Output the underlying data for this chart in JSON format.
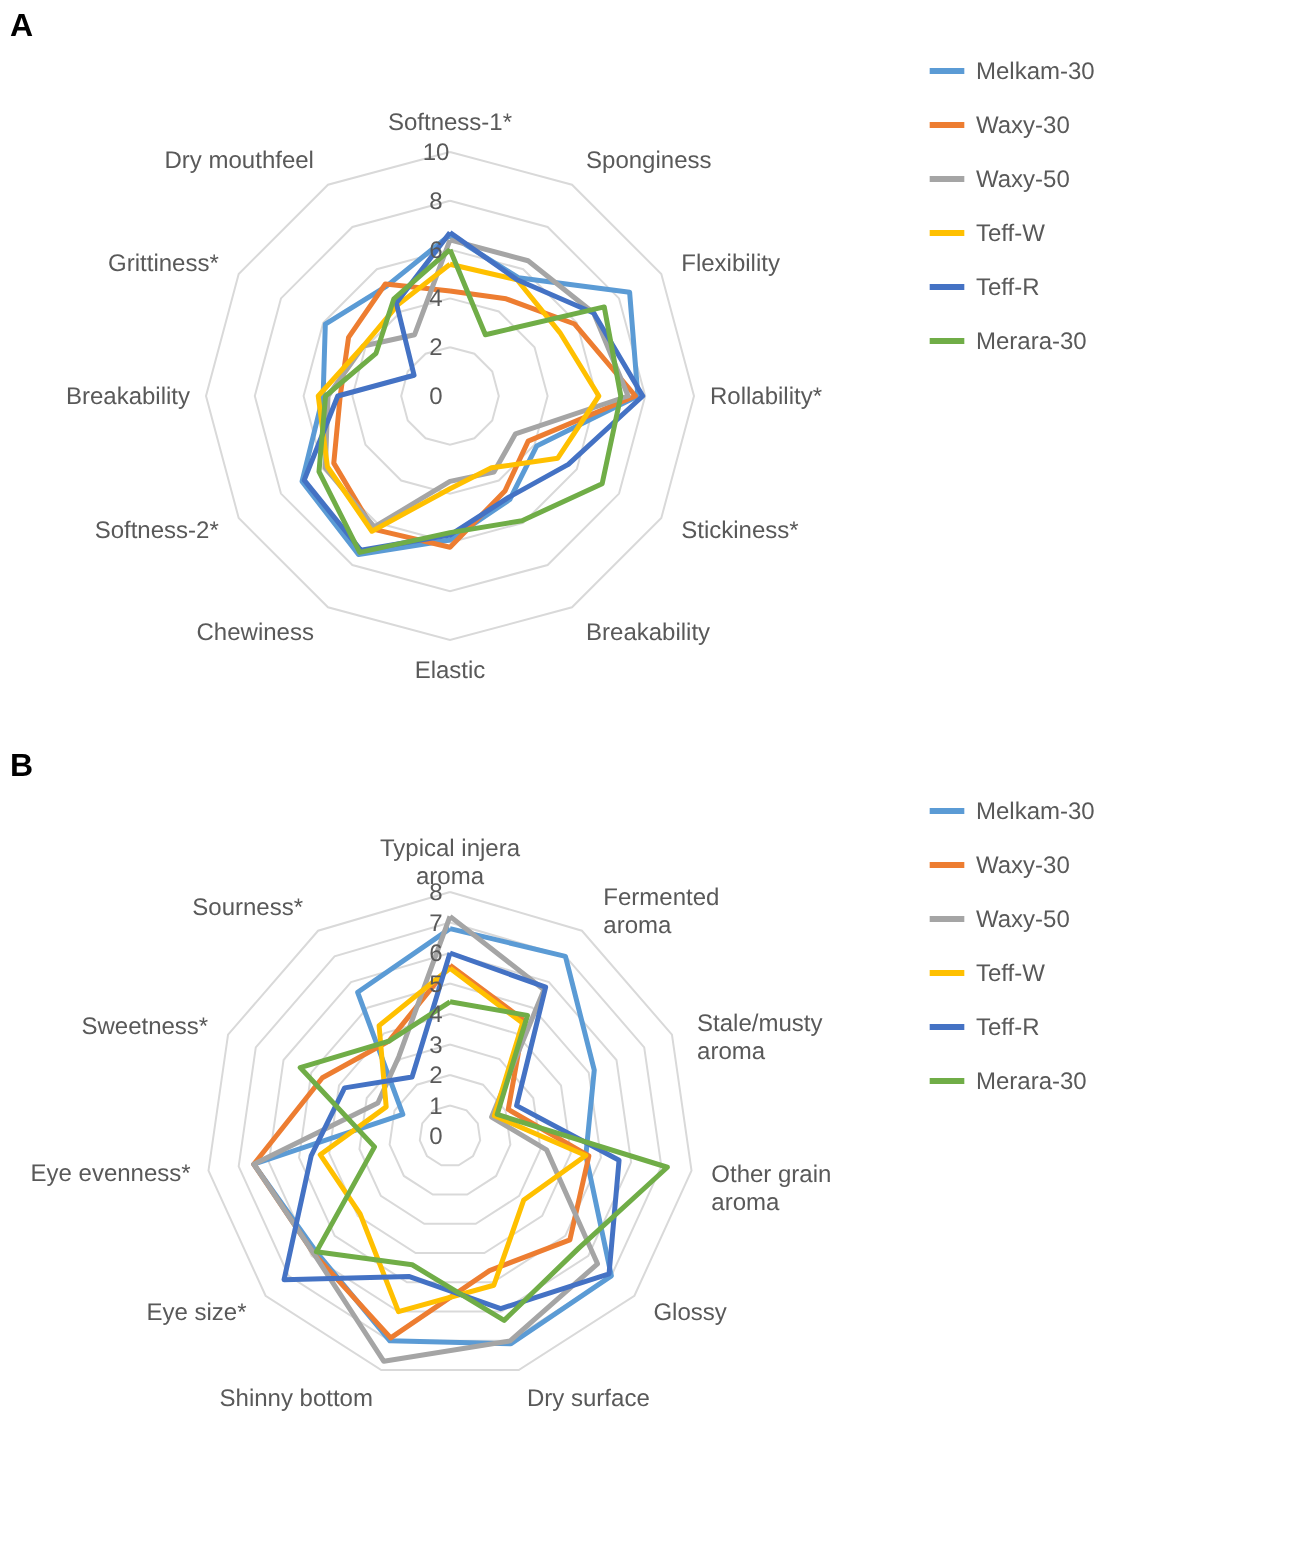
{
  "chart_data": [
    {
      "type": "radar",
      "title": "A",
      "categories": [
        "Softness-1*",
        "Sponginess",
        "Flexibility",
        "Rollability*",
        "Stickiness*",
        "Breakability",
        "Elastic",
        "Chewiness",
        "Softness-2*",
        "Breakability",
        "Grittiness*",
        "Dry mouthfeel"
      ],
      "ylim": [
        0,
        10
      ],
      "yticks": [
        0,
        2,
        4,
        6,
        8,
        10
      ],
      "grid": true,
      "legend": "right",
      "series": [
        {
          "name": "Melkam-30",
          "color": "#5b9bd5",
          "values": [
            6.6,
            5.6,
            8.5,
            7.7,
            4.1,
            4.9,
            5.9,
            7.5,
            7.0,
            5.2,
            5.9,
            5.2
          ]
        },
        {
          "name": "Waxy-30",
          "color": "#ed7d31",
          "values": [
            4.3,
            4.6,
            5.9,
            7.6,
            3.7,
            4.5,
            6.2,
            6.3,
            5.5,
            4.5,
            4.8,
            5.3
          ]
        },
        {
          "name": "Waxy-50",
          "color": "#a5a5a5",
          "values": [
            6.4,
            6.4,
            6.8,
            7.3,
            3.1,
            3.6,
            3.5,
            6.2,
            5.9,
            5.0,
            4.1,
            2.9
          ]
        },
        {
          "name": "Teff-W",
          "color": "#ffc000",
          "values": [
            5.4,
            5.5,
            5.2,
            6.1,
            5.1,
            3.4,
            3.8,
            6.4,
            5.8,
            5.4,
            4.1,
            4.3
          ]
        },
        {
          "name": "Teff-R",
          "color": "#4472c4",
          "values": [
            6.7,
            5.5,
            6.8,
            7.9,
            5.6,
            4.8,
            5.7,
            7.3,
            6.9,
            4.6,
            1.7,
            4.4
          ]
        },
        {
          "name": "Merara-30",
          "color": "#70ad47",
          "values": [
            6.0,
            2.9,
            7.3,
            7.0,
            7.2,
            5.9,
            5.6,
            7.4,
            6.2,
            5.1,
            3.5,
            4.6
          ]
        }
      ]
    },
    {
      "type": "radar",
      "title": "B",
      "categories": [
        "Typical injera aroma",
        "Fermented aroma",
        "Stale/musty aroma",
        "Other grain aroma",
        "Glossy",
        "Dry surface",
        "Shinny bottom",
        "Eye size*",
        "Eye evenness*",
        "Sweetness*",
        "Sourness*"
      ],
      "ylim": [
        0,
        8
      ],
      "yticks": [
        0,
        1,
        2,
        3,
        4,
        5,
        6,
        7,
        8
      ],
      "grid": true,
      "legend": "right",
      "series": [
        {
          "name": "Melkam-30",
          "color": "#5b9bd5",
          "values": [
            6.8,
            7.0,
            5.2,
            4.5,
            7.0,
            7.1,
            7.0,
            5.8,
            6.5,
            1.7,
            5.6
          ]
        },
        {
          "name": "Waxy-30",
          "color": "#ed7d31",
          "values": [
            5.6,
            4.5,
            2.1,
            4.6,
            5.2,
            4.6,
            6.9,
            5.9,
            6.5,
            4.6,
            3.7
          ]
        },
        {
          "name": "Waxy-50",
          "color": "#a5a5a5",
          "values": [
            7.2,
            5.7,
            1.5,
            3.2,
            6.4,
            7.0,
            7.7,
            5.9,
            6.5,
            2.6,
            3.1
          ]
        },
        {
          "name": "Teff-W",
          "color": "#ffc000",
          "values": [
            5.5,
            4.4,
            1.6,
            4.5,
            3.2,
            5.1,
            6.0,
            3.9,
            4.3,
            2.3,
            4.3
          ]
        },
        {
          "name": "Teff-R",
          "color": "#4472c4",
          "values": [
            6.0,
            5.8,
            2.4,
            5.6,
            6.9,
            5.9,
            4.8,
            7.2,
            4.6,
            3.8,
            2.3
          ]
        },
        {
          "name": "Merara-30",
          "color": "#70ad47",
          "values": [
            4.4,
            4.7,
            1.7,
            7.2,
            5.6,
            6.3,
            4.4,
            5.8,
            2.5,
            5.4,
            3.7
          ]
        }
      ]
    }
  ]
}
